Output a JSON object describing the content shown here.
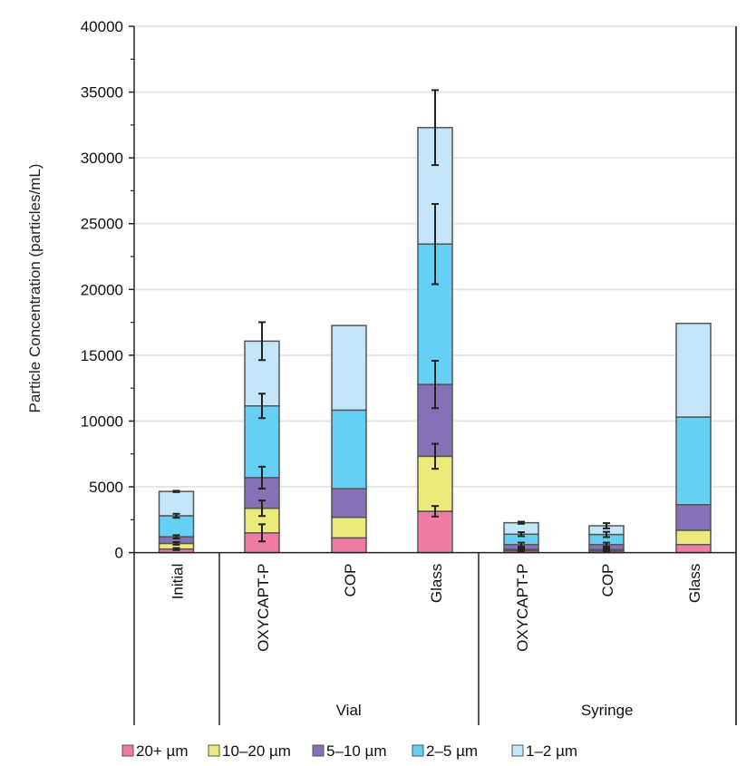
{
  "chart_data": {
    "type": "bar",
    "stacked": true,
    "ylabel": "Particle Concentration (particles/mL)",
    "ylim": [
      0,
      40000
    ],
    "yticks": [
      "0",
      "5000",
      "10000",
      "15000",
      "20000",
      "25000",
      "30000",
      "35000",
      "40000"
    ],
    "grid": true,
    "legend_position": "bottom",
    "categories": [
      "Initial",
      "OXYCAPT-P",
      "COP",
      "Glass",
      "OXYCAPT-P",
      "COP",
      "Glass"
    ],
    "groups": [
      {
        "label": "",
        "members": [
          0
        ]
      },
      {
        "label": "Vial",
        "members": [
          1,
          2,
          3
        ]
      },
      {
        "label": "Syringe",
        "members": [
          4,
          5,
          6
        ]
      }
    ],
    "series": [
      {
        "name": "20+ µm",
        "color": "#f07ca6",
        "values": [
          270,
          1500,
          1120,
          3140,
          150,
          130,
          610
        ],
        "errors": [
          80,
          650,
          null,
          400,
          100,
          100,
          null
        ]
      },
      {
        "name": "10–20 µm",
        "color": "#ebeb7c",
        "values": [
          430,
          1870,
          1560,
          4180,
          100,
          100,
          1090
        ],
        "errors": [
          100,
          590,
          null,
          950,
          100,
          100,
          null
        ]
      },
      {
        "name": "5–10 µm",
        "color": "#8571b5",
        "values": [
          500,
          2330,
          2180,
          5460,
          360,
          380,
          1940
        ],
        "errors": [
          120,
          830,
          null,
          1800,
          150,
          150,
          null
        ]
      },
      {
        "name": "2–5 µm",
        "color": "#66cff4",
        "values": [
          1600,
          5450,
          5970,
          10670,
          790,
          770,
          6660
        ],
        "errors": [
          150,
          930,
          null,
          3050,
          150,
          200,
          null
        ]
      },
      {
        "name": "1–2 µm",
        "color": "#c2e6f8",
        "values": [
          1850,
          4920,
          6430,
          8850,
          870,
          660,
          7120
        ],
        "errors": [
          50,
          1440,
          null,
          2850,
          80,
          200,
          null
        ]
      }
    ]
  }
}
